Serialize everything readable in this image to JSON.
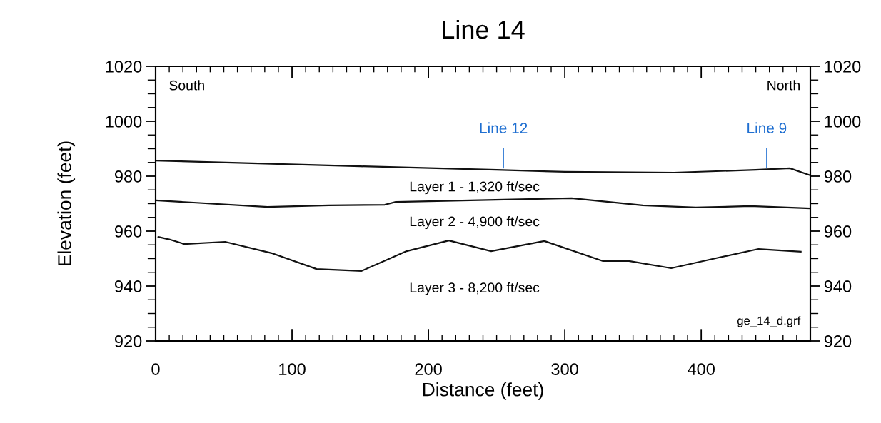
{
  "chart_data": {
    "type": "line",
    "title": "Line 14",
    "xlabel": "Distance (feet)",
    "ylabel": "Elevation (feet)",
    "xlim": [
      0,
      480
    ],
    "xticks": [
      0,
      100,
      200,
      300,
      400
    ],
    "ylim": [
      920,
      1020
    ],
    "yticks": [
      920,
      940,
      960,
      980,
      1000,
      1020
    ],
    "y2lim": [
      920,
      1020
    ],
    "y2ticks": [
      920,
      940,
      960,
      980,
      1000,
      1020
    ],
    "grid": false,
    "marker": "none",
    "line_style": "solid",
    "series": [
      {
        "color": "#111111",
        "x": [
          0,
          150,
          250,
          300,
          380,
          440,
          465,
          480
        ],
        "values": [
          985.7,
          983.6,
          982.3,
          981.6,
          981.3,
          982.3,
          982.9,
          980.3
        ]
      },
      {
        "color": "#111111",
        "x": [
          0,
          82,
          127,
          168,
          176,
          305,
          357,
          396,
          436,
          480
        ],
        "values": [
          971.2,
          968.8,
          969.4,
          969.6,
          970.6,
          972,
          969.4,
          968.6,
          969.1,
          968.3
        ]
      },
      {
        "color": "#111111",
        "x": [
          2,
          10,
          21,
          51,
          85,
          118,
          151,
          184,
          215,
          246,
          285,
          328,
          347,
          378,
          413,
          442,
          473
        ],
        "values": [
          957.9,
          957,
          955.3,
          956.1,
          952,
          946.2,
          945.5,
          952.7,
          956.6,
          952.7,
          956.4,
          949.1,
          949.1,
          946.5,
          950.4,
          953.5,
          952.5
        ]
      }
    ],
    "annotations": [
      "South",
      "North",
      "ge_14_d.grf",
      "Layer 1 - 1,320 ft/sec",
      "Layer 2 - 4,900 ft/sec",
      "Layer 3 - 8,200 ft/sec",
      {
        "text": "Line 12",
        "x": 255,
        "y": 983
      },
      {
        "text": "Line 9",
        "x": 448,
        "y": 983
      }
    ]
  }
}
